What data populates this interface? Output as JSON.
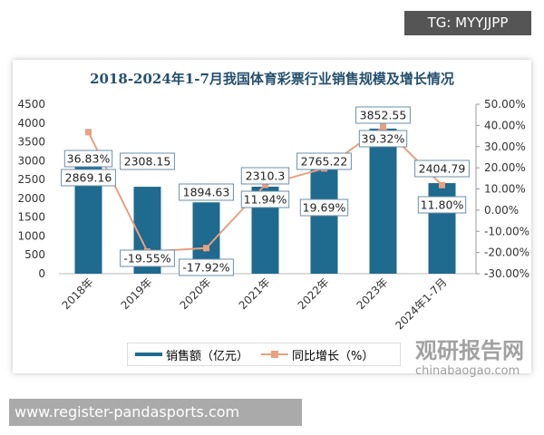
{
  "overlay": {
    "tag": "TG: MYYJJPP",
    "url": "www.register-pandasports.com",
    "watermark": "观研报告网",
    "watermark_sub": "chinabaogao.com"
  },
  "chart_data": {
    "type": "bar+line",
    "title": "2018-2024年1-7月我国体育彩票行业销售规模及增长情况",
    "categories": [
      "2018年",
      "2019年",
      "2020年",
      "2021年",
      "2022年",
      "2023年",
      "2024年1-7月"
    ],
    "series": [
      {
        "name": "销售额（亿元）",
        "type": "bar",
        "axis": "left",
        "color": "#1f6a8f",
        "values": [
          2869.16,
          2308.15,
          1894.63,
          2310.3,
          2765.22,
          3852.55,
          2404.79
        ],
        "labels": [
          "2869.16",
          "2308.15",
          "1894.63",
          "2310.3",
          "2765.22",
          "3852.55",
          "2404.79"
        ]
      },
      {
        "name": "同比增长（%）",
        "type": "line",
        "axis": "right",
        "color": "#e8a080",
        "values": [
          36.83,
          -19.55,
          -17.92,
          11.94,
          19.69,
          39.32,
          11.8
        ],
        "labels": [
          "36.83%",
          "-19.55%",
          "-17.92%",
          "11.94%",
          "19.69%",
          "39.32%",
          "11.80%"
        ]
      }
    ],
    "left_axis": {
      "range": [
        0,
        4500
      ],
      "ticks": [
        "0",
        "500",
        "1000",
        "1500",
        "2000",
        "2500",
        "3000",
        "3500",
        "4000",
        "4500"
      ]
    },
    "right_axis": {
      "range": [
        -30,
        50
      ],
      "ticks": [
        "-30.00%",
        "-20.00%",
        "-10.00%",
        "0.00%",
        "10.00%",
        "20.00%",
        "30.00%",
        "40.00%",
        "50.00%"
      ]
    },
    "legend": "bottom",
    "grid": false
  }
}
